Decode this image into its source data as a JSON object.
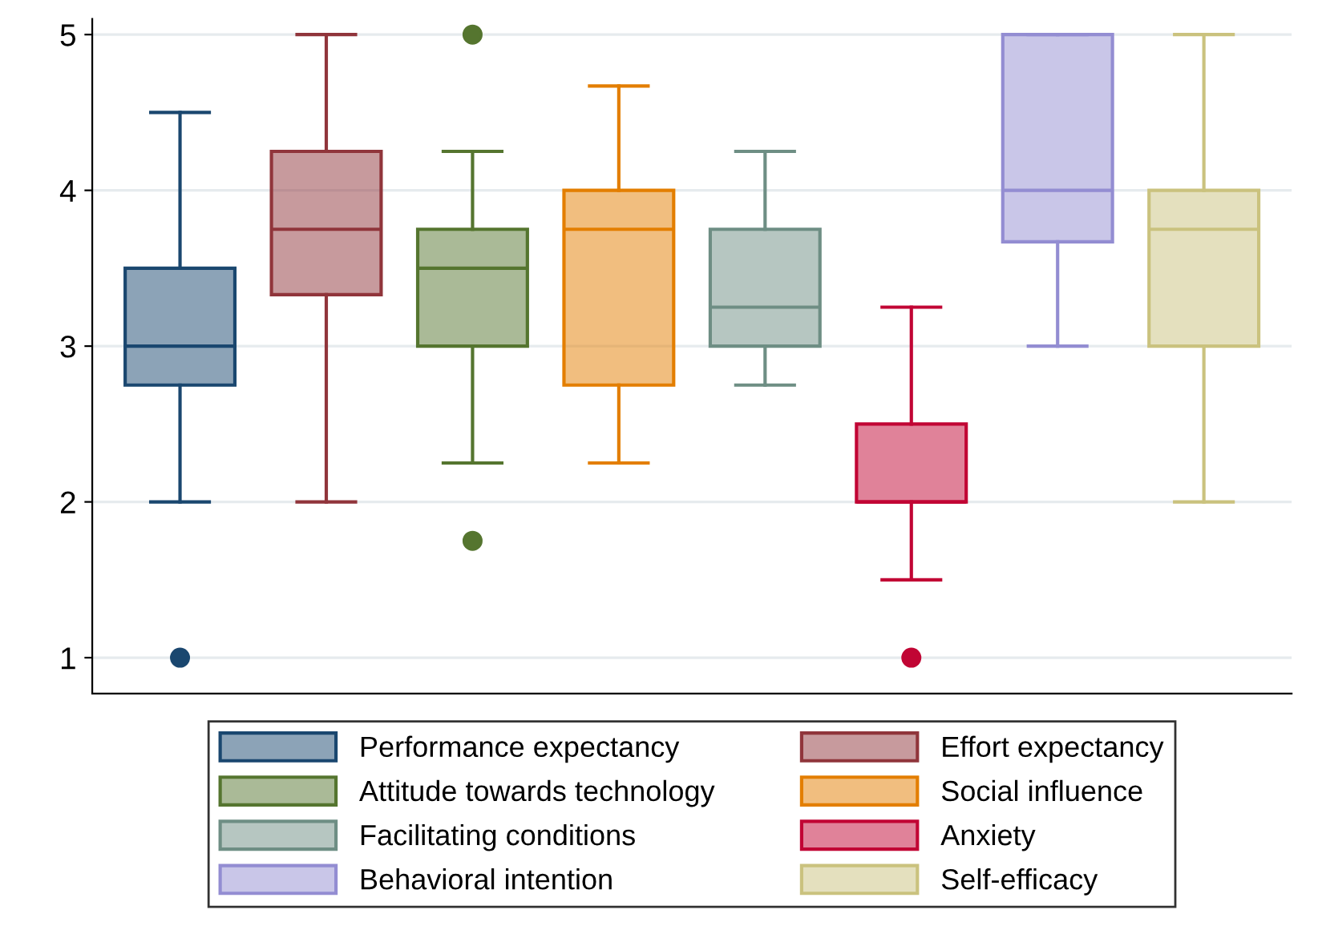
{
  "chart_data": {
    "type": "box",
    "categories": [
      null,
      null,
      null,
      null,
      null,
      null,
      null,
      null
    ],
    "series": [
      {
        "name": "Performance expectancy",
        "color": "#1a476f",
        "boxes": [
          {
            "low": 2,
            "q1": 2.75,
            "median": 3,
            "q3": 3.5,
            "high": 4.5,
            "outliers": [
              1
            ]
          },
          null,
          null,
          null,
          null,
          null,
          null,
          null
        ]
      },
      {
        "name": "Effort expectancy",
        "color": "#90353b",
        "boxes": [
          null,
          {
            "low": 2,
            "q1": 3.33,
            "median": 3.75,
            "q3": 4.25,
            "high": 5
          },
          null,
          null,
          null,
          null,
          null,
          null
        ]
      },
      {
        "name": "Attitude towards technology",
        "color": "#55752f",
        "boxes": [
          null,
          null,
          {
            "low": 2.25,
            "q1": 3,
            "median": 3.5,
            "q3": 3.75,
            "high": 4.25,
            "outliers": [
              5,
              1.75
            ]
          },
          null,
          null,
          null,
          null,
          null
        ]
      },
      {
        "name": "Social influence",
        "color": "#e37e00",
        "boxes": [
          null,
          null,
          null,
          {
            "low": 2.25,
            "q1": 2.75,
            "median": 3.75,
            "q3": 4,
            "high": 4.67
          },
          null,
          null,
          null,
          null
        ]
      },
      {
        "name": "Facilitating conditions",
        "color": "#6e8e84",
        "boxes": [
          null,
          null,
          null,
          null,
          {
            "low": 2.75,
            "q1": 3,
            "median": 3.25,
            "q3": 3.75,
            "high": 4.25
          },
          null,
          null,
          null
        ]
      },
      {
        "name": "Anxiety",
        "color": "#c10534",
        "boxes": [
          null,
          null,
          null,
          null,
          null,
          {
            "low": 1.5,
            "q1": 2,
            "median": 2,
            "q3": 2.5,
            "high": 3.25,
            "outliers": [
              1
            ]
          },
          null,
          null
        ]
      },
      {
        "name": "Behavioral intention",
        "color": "#938dd2",
        "boxes": [
          null,
          null,
          null,
          null,
          null,
          null,
          {
            "low": 3,
            "q1": 3.67,
            "median": 4,
            "q3": 5,
            "high": 5
          },
          null
        ]
      },
      {
        "name": "Self-efficacy",
        "color": "#cac27e",
        "boxes": [
          null,
          null,
          null,
          null,
          null,
          null,
          null,
          {
            "low": 2,
            "q1": 3,
            "median": 3.75,
            "q3": 4,
            "high": 5
          }
        ]
      }
    ],
    "ylim": [
      0.77,
      5.1
    ],
    "yticks": [
      1,
      2,
      3,
      4,
      5
    ],
    "grid": "y",
    "legend": "bottom",
    "tick_labels": "y",
    "marker": "circle"
  }
}
